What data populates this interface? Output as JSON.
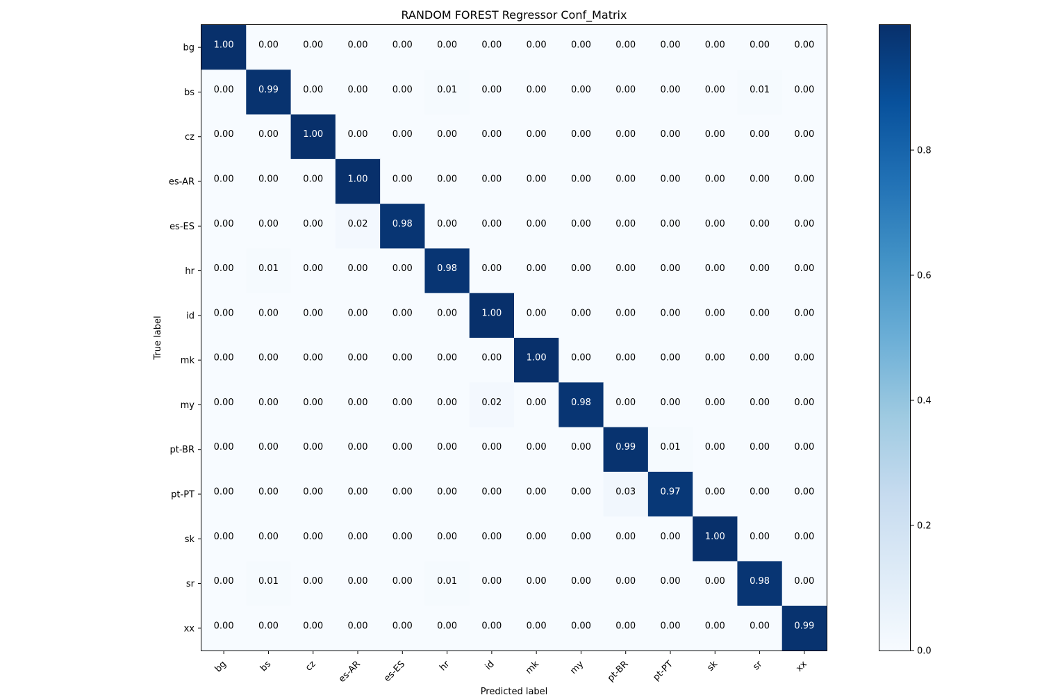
{
  "chart_data": {
    "type": "heatmap",
    "title": "RANDOM FOREST Regressor Conf_Matrix",
    "xlabel": "Predicted label",
    "ylabel": "True label",
    "x_categories": [
      "bg",
      "bs",
      "cz",
      "es-AR",
      "es-ES",
      "hr",
      "id",
      "mk",
      "my",
      "pt-BR",
      "pt-PT",
      "sk",
      "sr",
      "xx"
    ],
    "y_categories": [
      "bg",
      "bs",
      "cz",
      "es-AR",
      "es-ES",
      "hr",
      "id",
      "mk",
      "my",
      "pt-BR",
      "pt-PT",
      "sk",
      "sr",
      "xx"
    ],
    "values": [
      [
        1.0,
        0.0,
        0.0,
        0.0,
        0.0,
        0.0,
        0.0,
        0.0,
        0.0,
        0.0,
        0.0,
        0.0,
        0.0,
        0.0
      ],
      [
        0.0,
        0.99,
        0.0,
        0.0,
        0.0,
        0.01,
        0.0,
        0.0,
        0.0,
        0.0,
        0.0,
        0.0,
        0.01,
        0.0
      ],
      [
        0.0,
        0.0,
        1.0,
        0.0,
        0.0,
        0.0,
        0.0,
        0.0,
        0.0,
        0.0,
        0.0,
        0.0,
        0.0,
        0.0
      ],
      [
        0.0,
        0.0,
        0.0,
        1.0,
        0.0,
        0.0,
        0.0,
        0.0,
        0.0,
        0.0,
        0.0,
        0.0,
        0.0,
        0.0
      ],
      [
        0.0,
        0.0,
        0.0,
        0.02,
        0.98,
        0.0,
        0.0,
        0.0,
        0.0,
        0.0,
        0.0,
        0.0,
        0.0,
        0.0
      ],
      [
        0.0,
        0.01,
        0.0,
        0.0,
        0.0,
        0.98,
        0.0,
        0.0,
        0.0,
        0.0,
        0.0,
        0.0,
        0.0,
        0.0
      ],
      [
        0.0,
        0.0,
        0.0,
        0.0,
        0.0,
        0.0,
        1.0,
        0.0,
        0.0,
        0.0,
        0.0,
        0.0,
        0.0,
        0.0
      ],
      [
        0.0,
        0.0,
        0.0,
        0.0,
        0.0,
        0.0,
        0.0,
        1.0,
        0.0,
        0.0,
        0.0,
        0.0,
        0.0,
        0.0
      ],
      [
        0.0,
        0.0,
        0.0,
        0.0,
        0.0,
        0.0,
        0.02,
        0.0,
        0.98,
        0.0,
        0.0,
        0.0,
        0.0,
        0.0
      ],
      [
        0.0,
        0.0,
        0.0,
        0.0,
        0.0,
        0.0,
        0.0,
        0.0,
        0.0,
        0.99,
        0.01,
        0.0,
        0.0,
        0.0
      ],
      [
        0.0,
        0.0,
        0.0,
        0.0,
        0.0,
        0.0,
        0.0,
        0.0,
        0.0,
        0.03,
        0.97,
        0.0,
        0.0,
        0.0
      ],
      [
        0.0,
        0.0,
        0.0,
        0.0,
        0.0,
        0.0,
        0.0,
        0.0,
        0.0,
        0.0,
        0.0,
        1.0,
        0.0,
        0.0
      ],
      [
        0.0,
        0.01,
        0.0,
        0.0,
        0.0,
        0.01,
        0.0,
        0.0,
        0.0,
        0.0,
        0.0,
        0.0,
        0.98,
        0.0
      ],
      [
        0.0,
        0.0,
        0.0,
        0.0,
        0.0,
        0.0,
        0.0,
        0.0,
        0.0,
        0.0,
        0.0,
        0.0,
        0.0,
        0.99
      ]
    ],
    "colormap": "Blues",
    "color_range": [
      0.0,
      1.0
    ],
    "colorbar_ticks": [
      "0.0",
      "0.2",
      "0.4",
      "0.6",
      "0.8"
    ],
    "colors": {
      "low": "#f7fbff",
      "high": "#08306b",
      "text_dark": "#000000",
      "text_light": "#ffffff"
    }
  }
}
